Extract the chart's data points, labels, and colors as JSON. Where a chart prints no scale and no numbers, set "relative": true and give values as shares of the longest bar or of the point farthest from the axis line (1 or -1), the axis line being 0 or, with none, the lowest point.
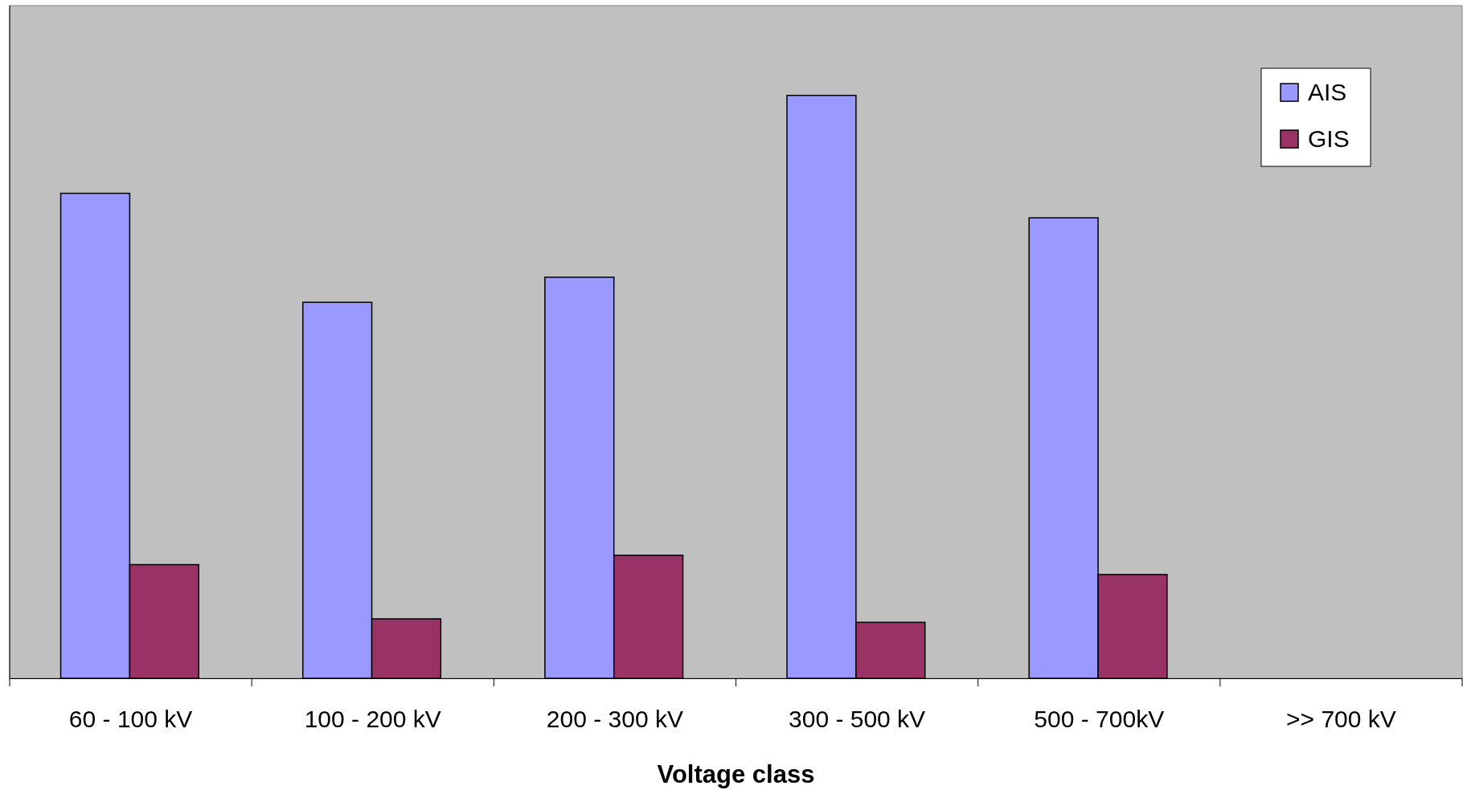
{
  "chart_data": {
    "type": "bar",
    "xlabel": "Voltage class",
    "relative": true,
    "categories": [
      "60 - 100 kV",
      "100 - 200 kV",
      "200 - 300 kV",
      "300 - 500 kV",
      "500 - 700kV",
      ">> 700 kV"
    ],
    "series": [
      {
        "name": "AIS",
        "color": "#9999ff",
        "values": [
          0.832,
          0.645,
          0.688,
          1,
          0.79,
          null
        ]
      },
      {
        "name": "GIS",
        "color": "#993366",
        "values": [
          0.195,
          0.102,
          0.211,
          0.096,
          0.178,
          null
        ]
      }
    ],
    "legend": "top right"
  }
}
